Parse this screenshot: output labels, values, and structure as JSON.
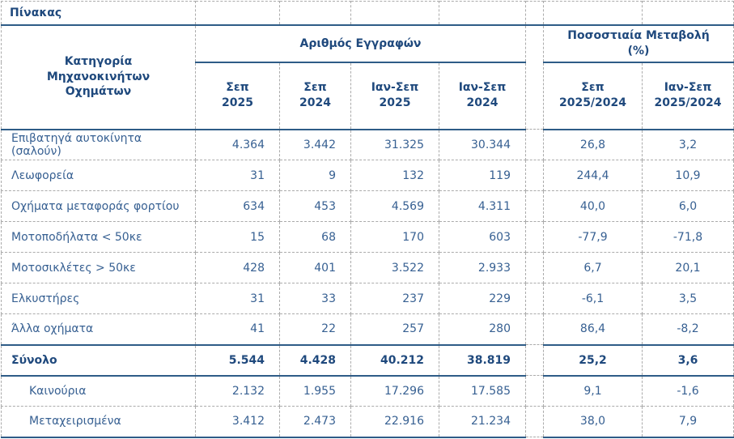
{
  "title": "Πίνακας",
  "table": {
    "category_header": "Κατηγορία\nΜηχανοκινήτων\nΟχημάτων",
    "groups": [
      {
        "label": "Αριθμός Εγγραφών",
        "span": 4
      },
      {
        "label": "Ποσοστιαία Μεταβολή\n(%)",
        "span": 2
      }
    ],
    "sub_headers": [
      "Σεπ\n2025",
      "Σεπ\n2024",
      "Ιαν-Σεπ\n2025",
      "Ιαν-Σεπ\n2024",
      "Σεπ\n2025/2024",
      "Ιαν-Σεπ\n2025/2024"
    ],
    "rows": [
      {
        "category": "Επιβατηγά αυτοκίνητα (σαλούν)",
        "style": "normal",
        "values": [
          "4.364",
          "3.442",
          "31.325",
          "30.344",
          "26,8",
          "3,2"
        ]
      },
      {
        "category": "Λεωφορεία",
        "style": "normal",
        "values": [
          "31",
          "9",
          "132",
          "119",
          "244,4",
          "10,9"
        ]
      },
      {
        "category": "Οχήματα μεταφοράς φορτίου",
        "style": "normal",
        "values": [
          "634",
          "453",
          "4.569",
          "4.311",
          "40,0",
          "6,0"
        ]
      },
      {
        "category": "Μοτοποδήλατα < 50κε",
        "style": "normal",
        "values": [
          "15",
          "68",
          "170",
          "603",
          "-77,9",
          "-71,8"
        ]
      },
      {
        "category": "Μοτοσικλέτες > 50κε",
        "style": "normal",
        "values": [
          "428",
          "401",
          "3.522",
          "2.933",
          "6,7",
          "20,1"
        ]
      },
      {
        "category": "Ελκυστήρες",
        "style": "normal",
        "values": [
          "31",
          "33",
          "237",
          "229",
          "-6,1",
          "3,5"
        ]
      },
      {
        "category": "Άλλα οχήματα",
        "style": "normal",
        "values": [
          "41",
          "22",
          "257",
          "280",
          "86,4",
          "-8,2"
        ]
      },
      {
        "category": "Σύνολο",
        "style": "total",
        "values": [
          "5.544",
          "4.428",
          "40.212",
          "38.819",
          "25,2",
          "3,6"
        ]
      },
      {
        "category": "Καινούρια",
        "style": "indent",
        "values": [
          "2.132",
          "1.955",
          "17.296",
          "17.585",
          "9,1",
          "-1,6"
        ]
      },
      {
        "category": "Μεταχειρισμένα",
        "style": "indent",
        "values": [
          "3.412",
          "2.473",
          "22.916",
          "21.234",
          "38,0",
          "7,9"
        ]
      }
    ],
    "colors": {
      "header_text": "#1F497D",
      "data_text": "#376092",
      "solid_border": "#2E5C87",
      "dashed_border": "#ABABAB"
    }
  }
}
